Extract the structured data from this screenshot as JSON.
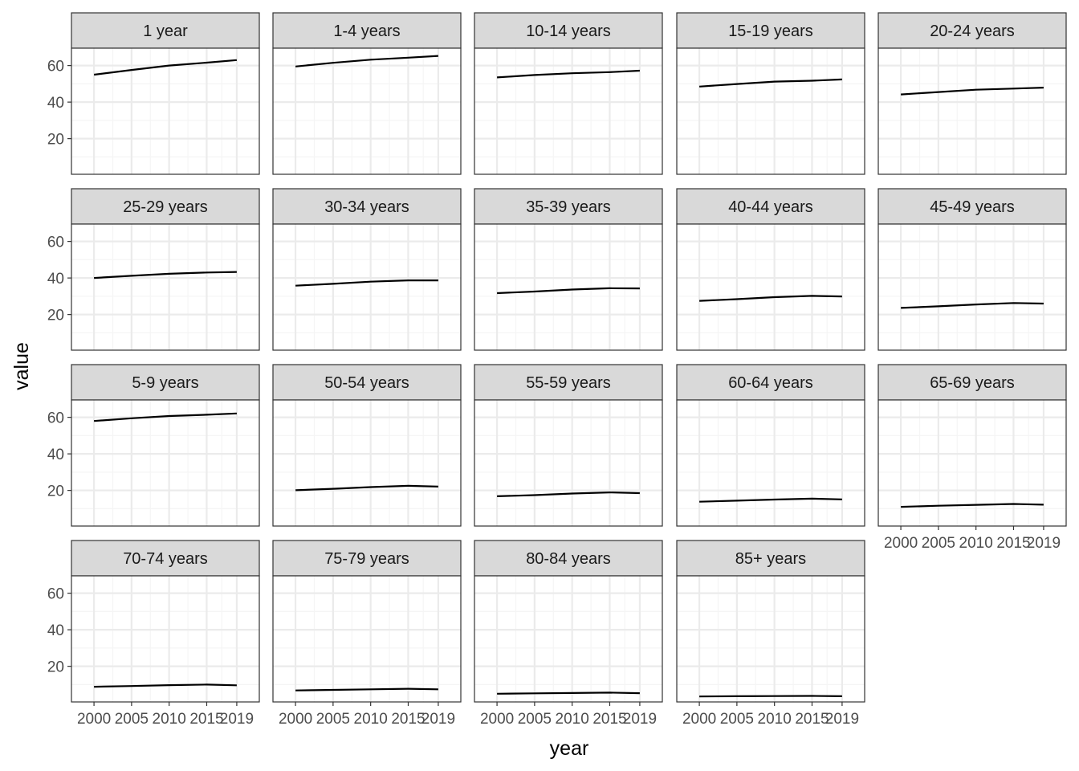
{
  "chart_data": {
    "type": "line",
    "layout": "facet-grid",
    "xlabel": "year",
    "ylabel": "value",
    "x_ticks": [
      2000,
      2005,
      2010,
      2015,
      2019
    ],
    "y_ticks": [
      20,
      40,
      60
    ],
    "xlim": [
      1997,
      2022
    ],
    "ylim": [
      0.5,
      69.5
    ],
    "grid": true,
    "x": [
      2000,
      2005,
      2010,
      2015,
      2019
    ],
    "series": [
      {
        "name": "1 year",
        "values": [
          55.0,
          57.6,
          60.0,
          61.6,
          63.0
        ]
      },
      {
        "name": "1-4 years",
        "values": [
          59.5,
          61.5,
          63.2,
          64.3,
          65.3
        ]
      },
      {
        "name": "10-14 years",
        "values": [
          53.5,
          54.8,
          55.8,
          56.4,
          57.2
        ]
      },
      {
        "name": "15-19  years",
        "values": [
          48.5,
          49.9,
          51.2,
          51.7,
          52.4
        ]
      },
      {
        "name": "20-24 years",
        "values": [
          44.2,
          45.5,
          46.8,
          47.4,
          47.9
        ]
      },
      {
        "name": "25-29 years",
        "values": [
          40.0,
          41.2,
          42.3,
          43.0,
          43.3
        ]
      },
      {
        "name": "30-34 years",
        "values": [
          35.8,
          36.8,
          38.0,
          38.7,
          38.7
        ]
      },
      {
        "name": "35-39 years",
        "values": [
          31.7,
          32.6,
          33.7,
          34.4,
          34.3
        ]
      },
      {
        "name": "40-44 years",
        "values": [
          27.5,
          28.4,
          29.5,
          30.2,
          29.9
        ]
      },
      {
        "name": "45-49 years",
        "values": [
          23.6,
          24.5,
          25.5,
          26.3,
          26.0
        ]
      },
      {
        "name": "5-9 years",
        "values": [
          58.0,
          59.5,
          60.7,
          61.4,
          62.1
        ]
      },
      {
        "name": "50-54 years",
        "values": [
          20.1,
          20.9,
          21.8,
          22.5,
          22.1
        ]
      },
      {
        "name": "55-59 years",
        "values": [
          16.8,
          17.4,
          18.3,
          18.9,
          18.5
        ]
      },
      {
        "name": "60-64 years",
        "values": [
          13.8,
          14.4,
          15.0,
          15.5,
          15.1
        ]
      },
      {
        "name": "65-69 years",
        "values": [
          11.0,
          11.6,
          12.1,
          12.6,
          12.2
        ]
      },
      {
        "name": "70-74 years",
        "values": [
          8.8,
          9.2,
          9.7,
          10.0,
          9.6
        ]
      },
      {
        "name": "75-79 years",
        "values": [
          6.8,
          7.1,
          7.4,
          7.7,
          7.4
        ]
      },
      {
        "name": "80-84 years",
        "values": [
          5.0,
          5.2,
          5.4,
          5.6,
          5.3
        ]
      },
      {
        "name": "85+ years",
        "values": [
          3.5,
          3.6,
          3.7,
          3.8,
          3.6
        ]
      }
    ]
  },
  "colors": {
    "line": "#000000",
    "panel_border": "#333333",
    "strip_fill": "#d9d9d9",
    "grid_major": "#ebebeb",
    "grid_minor": "#f5f5f5"
  }
}
